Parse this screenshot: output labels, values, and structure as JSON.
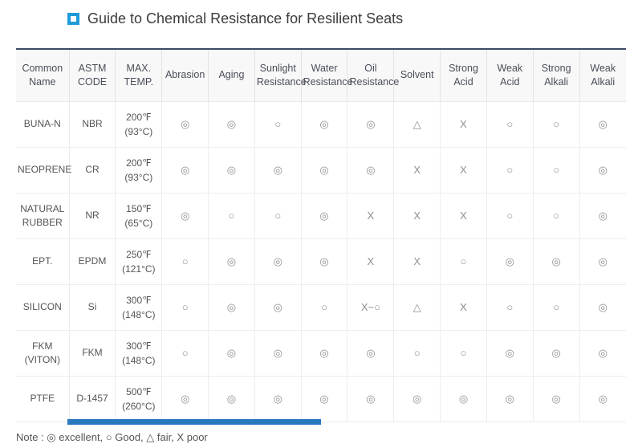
{
  "page": {
    "title": "Guide to Chemical Resistance for Resilient Seats",
    "note_text": "Note : ◎ excellent, ○ Good, △ fair, X poor"
  },
  "colors": {
    "accent_blue": "#1d9bd9",
    "table_top_border": "#3c4a66",
    "header_bg": "#f8f8f8",
    "grid_line": "#e3e3e3",
    "symbol_gray": "#8f8f8f",
    "bottom_bar_blue": "#2878be"
  },
  "legend": [
    {
      "symbol": "◎",
      "meaning": "excellent"
    },
    {
      "symbol": "○",
      "meaning": "Good"
    },
    {
      "symbol": "△",
      "meaning": "fair"
    },
    {
      "symbol": "X",
      "meaning": "poor"
    }
  ],
  "table": {
    "headers": [
      "Common Name",
      "ASTM CODE",
      "MAX. TEMP.",
      "Abrasion",
      "Aging",
      "Sunlight Resistance",
      "Water Resistance",
      "Oil Resistance",
      "Solvent",
      "Strong Acid",
      "Weak Acid",
      "Strong Alkali",
      "Weak Alkali"
    ],
    "rows": [
      {
        "common_name": "BUNA-N",
        "astm_code": "NBR",
        "max_temp_f": "200℉",
        "max_temp_c": "(93°C)",
        "ratings": [
          "◎",
          "◎",
          "○",
          "◎",
          "◎",
          "△",
          "X",
          "○",
          "○",
          "◎"
        ]
      },
      {
        "common_name": "NEOPRENE",
        "astm_code": "CR",
        "max_temp_f": "200℉",
        "max_temp_c": "(93°C)",
        "ratings": [
          "◎",
          "◎",
          "◎",
          "◎",
          "◎",
          "X",
          "X",
          "○",
          "○",
          "◎"
        ]
      },
      {
        "common_name": "NATURAL RUBBER",
        "astm_code": "NR",
        "max_temp_f": "150℉",
        "max_temp_c": "(65°C)",
        "ratings": [
          "◎",
          "○",
          "○",
          "◎",
          "X",
          "X",
          "X",
          "○",
          "○",
          "◎"
        ]
      },
      {
        "common_name": "EPT.",
        "astm_code": "EPDM",
        "max_temp_f": "250℉",
        "max_temp_c": "(121°C)",
        "ratings": [
          "○",
          "◎",
          "◎",
          "◎",
          "X",
          "X",
          "○",
          "◎",
          "◎",
          "◎"
        ]
      },
      {
        "common_name": "SILICON",
        "astm_code": "Si",
        "max_temp_f": "300℉",
        "max_temp_c": "(148°C)",
        "ratings": [
          "○",
          "◎",
          "◎",
          "○",
          "X~○",
          "△",
          "X",
          "○",
          "○",
          "◎"
        ]
      },
      {
        "common_name": "FKM (VITON)",
        "astm_code": "FKM",
        "max_temp_f": "300℉",
        "max_temp_c": "(148°C)",
        "ratings": [
          "○",
          "◎",
          "◎",
          "◎",
          "◎",
          "○",
          "○",
          "◎",
          "◎",
          "◎"
        ]
      },
      {
        "common_name": "PTFE",
        "astm_code": "D-1457",
        "max_temp_f": "500℉",
        "max_temp_c": "(260°C)",
        "ratings": [
          "◎",
          "◎",
          "◎",
          "◎",
          "◎",
          "◎",
          "◎",
          "◎",
          "◎",
          "◎"
        ]
      }
    ]
  }
}
